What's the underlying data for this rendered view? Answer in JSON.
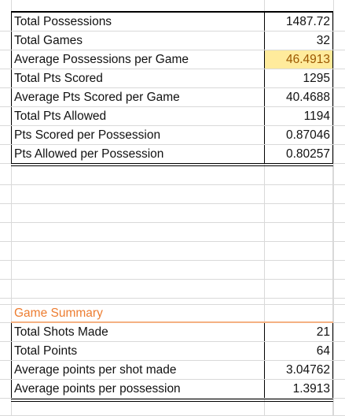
{
  "stats": [
    {
      "label": "Total Possessions",
      "value": "1487.72"
    },
    {
      "label": "Total Games",
      "value": "32"
    },
    {
      "label": "Average Possessions per Game",
      "value": "46.4913"
    },
    {
      "label": "Total Pts Scored",
      "value": "1295"
    },
    {
      "label": "Average Pts Scored per Game",
      "value": "40.4688"
    },
    {
      "label": "Total Pts Allowed",
      "value": "1194"
    },
    {
      "label": "Pts Scored per Possession",
      "value": "0.87046"
    },
    {
      "label": "Pts Allowed per Possession",
      "value": "0.80257"
    }
  ],
  "game_summary": {
    "title": "Game Summary",
    "rows": [
      {
        "label": "Total Shots Made",
        "value": "21"
      },
      {
        "label": "Total Points",
        "value": "64"
      },
      {
        "label": "Average points per shot made",
        "value": "3.04762"
      },
      {
        "label": "Average points per possession",
        "value": "1.3913"
      }
    ]
  },
  "colors": {
    "highlight_fill": "#ffeb9c",
    "highlight_text": "#9c5700",
    "section_title": "#ed7d31"
  }
}
